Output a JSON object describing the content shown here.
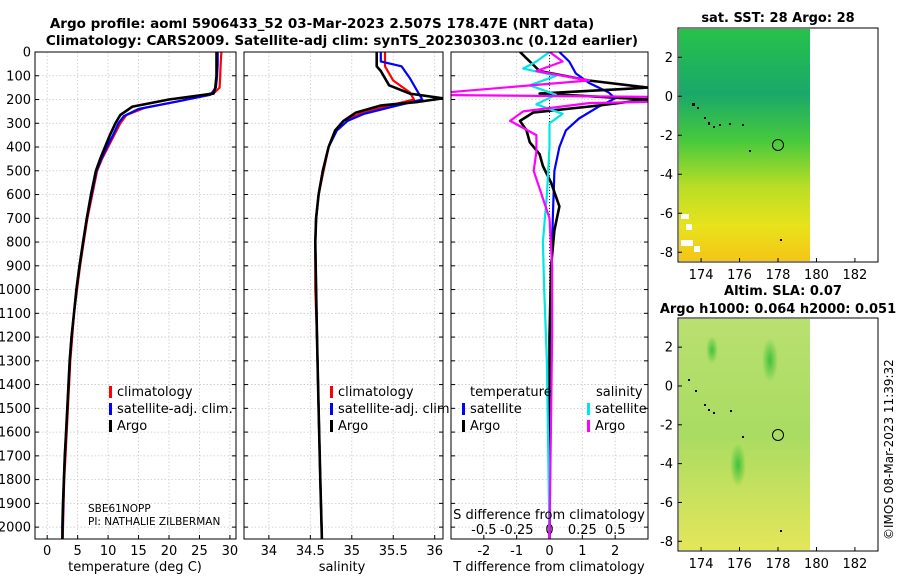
{
  "header": {
    "title_line1": "Argo profile: aoml 5906433_52 03-Mar-2023 2.507S 178.47E (NRT data)",
    "title_line2": "Climatology: CARS2009. Satellite-adj clim: synTS_20230303.nc (0.12d earlier)"
  },
  "colors": {
    "climatology": "#ff0000",
    "satellite_adj": "#0000ff",
    "argo": "#000000",
    "sal_satellite": "#00e5e5",
    "sal_argo": "#ff00ff"
  },
  "watermark": "©IMOS 08-Mar-2023 11:39:32",
  "chart_data": [
    {
      "id": "temperature",
      "type": "line",
      "xlabel": "temperature (deg C)",
      "xlim": [
        -2,
        31
      ],
      "ylim": [
        2050,
        0
      ],
      "xticks": [
        0,
        5,
        10,
        15,
        20,
        25,
        30
      ],
      "xtick_labels": [
        "0",
        "5",
        "10",
        "15",
        "20",
        "25",
        "30"
      ],
      "yticks": [
        0,
        100,
        200,
        300,
        400,
        500,
        600,
        700,
        800,
        900,
        1000,
        1100,
        1200,
        1300,
        1400,
        1500,
        1600,
        1700,
        1800,
        1900,
        2000
      ],
      "ytick_labels": [
        "0",
        "100",
        "200",
        "300",
        "400",
        "500",
        "600",
        "700",
        "800",
        "900",
        "1000",
        "1100",
        "1200",
        "1300",
        "1400",
        "1500",
        "1600",
        "1700",
        "1800",
        "1900",
        "2000"
      ],
      "grid": true,
      "legend": [
        "climatology",
        "satellite-adj. clim.",
        "Argo"
      ],
      "annotation": [
        "SBE61NOPP",
        "PI: NATHALIE ZILBERMAN"
      ],
      "series": [
        {
          "name": "climatology",
          "color": "#ff0000",
          "points": [
            [
              28.6,
              0
            ],
            [
              28.5,
              40
            ],
            [
              28.4,
              100
            ],
            [
              28.3,
              150
            ],
            [
              27.5,
              170
            ],
            [
              22,
              205
            ],
            [
              16,
              235
            ],
            [
              13,
              265
            ],
            [
              12,
              300
            ],
            [
              11,
              350
            ],
            [
              10,
              400
            ],
            [
              9,
              450
            ],
            [
              8.2,
              500
            ],
            [
              7.4,
              600
            ],
            [
              6.6,
              700
            ],
            [
              6,
              800
            ],
            [
              5.4,
              900
            ],
            [
              4.9,
              1000
            ],
            [
              4.4,
              1100
            ],
            [
              4.1,
              1200
            ],
            [
              3.8,
              1300
            ],
            [
              3.6,
              1400
            ],
            [
              3.4,
              1500
            ],
            [
              3.2,
              1600
            ],
            [
              3.0,
              1700
            ],
            [
              2.8,
              1800
            ],
            [
              2.7,
              1900
            ],
            [
              2.6,
              2000
            ],
            [
              2.55,
              2050
            ]
          ]
        },
        {
          "name": "satellite-adj. clim.",
          "color": "#0000ff",
          "points": [
            [
              28.0,
              0
            ],
            [
              28.0,
              50
            ],
            [
              27.9,
              100
            ],
            [
              27.7,
              150
            ],
            [
              26.8,
              180
            ],
            [
              21,
              210
            ],
            [
              15,
              240
            ],
            [
              12.6,
              270
            ],
            [
              11.7,
              300
            ],
            [
              10.8,
              350
            ],
            [
              9.8,
              400
            ],
            [
              8.9,
              450
            ],
            [
              8.1,
              500
            ],
            [
              7.3,
              600
            ],
            [
              6.5,
              700
            ],
            [
              5.9,
              800
            ],
            [
              5.3,
              900
            ],
            [
              4.8,
              1000
            ],
            [
              4.4,
              1100
            ],
            [
              4.0,
              1200
            ],
            [
              3.7,
              1300
            ],
            [
              3.5,
              1400
            ],
            [
              3.3,
              1500
            ],
            [
              3.1,
              1600
            ],
            [
              2.9,
              1700
            ],
            [
              2.75,
              1800
            ],
            [
              2.65,
              1900
            ],
            [
              2.55,
              2000
            ],
            [
              2.5,
              2050
            ]
          ]
        },
        {
          "name": "Argo",
          "color": "#000000",
          "points": [
            [
              27.8,
              0
            ],
            [
              27.8,
              50
            ],
            [
              27.8,
              100
            ],
            [
              27.6,
              150
            ],
            [
              27.3,
              175
            ],
            [
              20,
              200
            ],
            [
              14,
              230
            ],
            [
              12,
              265
            ],
            [
              11.2,
              300
            ],
            [
              10.3,
              350
            ],
            [
              9.5,
              400
            ],
            [
              8.7,
              450
            ],
            [
              8.0,
              500
            ],
            [
              7.2,
              600
            ],
            [
              6.5,
              700
            ],
            [
              5.9,
              800
            ],
            [
              5.3,
              900
            ],
            [
              4.8,
              1000
            ],
            [
              4.4,
              1100
            ],
            [
              4.0,
              1200
            ],
            [
              3.7,
              1300
            ],
            [
              3.5,
              1400
            ],
            [
              3.3,
              1500
            ],
            [
              3.1,
              1600
            ],
            [
              2.9,
              1700
            ],
            [
              2.75,
              1800
            ],
            [
              2.6,
              1900
            ],
            [
              2.5,
              2000
            ],
            [
              2.5,
              2050
            ]
          ]
        }
      ]
    },
    {
      "id": "salinity",
      "type": "line",
      "xlabel": "salinity",
      "xlim": [
        33.7,
        36.1
      ],
      "ylim": [
        2050,
        0
      ],
      "xticks": [
        34,
        34.5,
        35,
        35.5,
        36
      ],
      "xtick_labels": [
        "34",
        "34.5",
        "35",
        "35.5",
        "36"
      ],
      "grid": true,
      "legend": [
        "climatology",
        "satellite-adj. clim.",
        "Argo"
      ],
      "series": [
        {
          "name": "climatology",
          "color": "#ff0000",
          "points": [
            [
              35.4,
              0
            ],
            [
              35.4,
              60
            ],
            [
              35.5,
              120
            ],
            [
              35.7,
              170
            ],
            [
              35.75,
              200
            ],
            [
              35.4,
              230
            ],
            [
              35.1,
              260
            ],
            [
              34.9,
              290
            ],
            [
              34.8,
              330
            ],
            [
              34.72,
              400
            ],
            [
              34.66,
              500
            ],
            [
              34.6,
              600
            ],
            [
              34.57,
              700
            ],
            [
              34.56,
              800
            ],
            [
              34.56,
              1000
            ],
            [
              34.58,
              1200
            ],
            [
              34.6,
              1500
            ],
            [
              34.62,
              1800
            ],
            [
              34.64,
              2050
            ]
          ]
        },
        {
          "name": "satellite-adj. clim.",
          "color": "#0000ff",
          "points": [
            [
              35.35,
              0
            ],
            [
              35.35,
              40
            ],
            [
              35.6,
              60
            ],
            [
              35.7,
              110
            ],
            [
              35.8,
              170
            ],
            [
              35.85,
              200
            ],
            [
              35.5,
              230
            ],
            [
              35.15,
              260
            ],
            [
              34.95,
              290
            ],
            [
              34.82,
              330
            ],
            [
              34.72,
              400
            ],
            [
              34.65,
              500
            ],
            [
              34.6,
              600
            ],
            [
              34.57,
              700
            ],
            [
              34.56,
              800
            ],
            [
              34.57,
              1000
            ],
            [
              34.58,
              1200
            ],
            [
              34.6,
              1500
            ],
            [
              34.62,
              1800
            ],
            [
              34.64,
              2050
            ]
          ]
        },
        {
          "name": "Argo",
          "color": "#000000",
          "points": [
            [
              35.3,
              0
            ],
            [
              35.3,
              20
            ],
            [
              35.3,
              60
            ],
            [
              35.35,
              80
            ],
            [
              35.45,
              140
            ],
            [
              35.7,
              175
            ],
            [
              36.1,
              195
            ],
            [
              35.8,
              210
            ],
            [
              35.35,
              225
            ],
            [
              35.05,
              255
            ],
            [
              34.9,
              290
            ],
            [
              34.8,
              330
            ],
            [
              34.72,
              400
            ],
            [
              34.65,
              500
            ],
            [
              34.6,
              600
            ],
            [
              34.57,
              700
            ],
            [
              34.56,
              800
            ],
            [
              34.57,
              1000
            ],
            [
              34.58,
              1200
            ],
            [
              34.6,
              1500
            ],
            [
              34.62,
              1800
            ],
            [
              34.64,
              2050
            ]
          ]
        }
      ]
    },
    {
      "id": "difference",
      "type": "line",
      "xlabel": "T difference from climatology",
      "xlabel2": "S difference from climatology",
      "xlim": [
        -3,
        3
      ],
      "ylim": [
        2050,
        0
      ],
      "xticks": [
        -2,
        -1,
        0,
        1,
        2
      ],
      "xtick_labels": [
        "-2",
        "-1",
        "0",
        "1",
        "2"
      ],
      "sticks": [
        -0.5,
        -0.25,
        0,
        0.25,
        0.5
      ],
      "stick_labels": [
        "-0.5",
        "-0.25",
        "0",
        "0.25",
        "0.5"
      ],
      "legend_temperature_title": "temperature",
      "legend_salinity_title": "salinity",
      "legend_temperature": [
        "satellite",
        "Argo"
      ],
      "legend_salinity": [
        "satellite",
        "Argo"
      ],
      "series": [
        {
          "name": "T satellite",
          "color": "#0000ff",
          "points": [
            [
              0.3,
              0
            ],
            [
              0.6,
              40
            ],
            [
              0.8,
              90
            ],
            [
              1.2,
              130
            ],
            [
              1.8,
              170
            ],
            [
              2.0,
              195
            ],
            [
              1.5,
              230
            ],
            [
              0.9,
              280
            ],
            [
              0.5,
              330
            ],
            [
              0.3,
              400
            ],
            [
              0.15,
              500
            ],
            [
              0.1,
              700
            ],
            [
              0.05,
              1000
            ],
            [
              0.02,
              1500
            ],
            [
              0,
              2050
            ]
          ]
        },
        {
          "name": "T Argo",
          "color": "#000000",
          "points": [
            [
              -0.9,
              0
            ],
            [
              -0.6,
              40
            ],
            [
              -0.3,
              80
            ],
            [
              1.2,
              120
            ],
            [
              3.0,
              150
            ],
            [
              -0.3,
              175
            ],
            [
              3.0,
              200
            ],
            [
              1.5,
              225
            ],
            [
              -0.5,
              255
            ],
            [
              -0.9,
              290
            ],
            [
              -0.7,
              330
            ],
            [
              -0.6,
              380
            ],
            [
              -0.3,
              430
            ],
            [
              -0.2,
              480
            ],
            [
              0.05,
              550
            ],
            [
              0.3,
              650
            ],
            [
              0.15,
              750
            ],
            [
              0.05,
              900
            ],
            [
              0,
              1200
            ],
            [
              0,
              2050
            ]
          ]
        },
        {
          "name": "S satellite",
          "color": "#00e5e5",
          "points": [
            [
              0,
              0
            ],
            [
              -0.1,
              40
            ],
            [
              -0.2,
              70
            ],
            [
              0.05,
              100
            ],
            [
              -0.15,
              140
            ],
            [
              0.05,
              180
            ],
            [
              -0.1,
              220
            ],
            [
              0.1,
              260
            ],
            [
              0,
              300
            ],
            [
              0,
              400
            ],
            [
              -0.02,
              600
            ],
            [
              -0.05,
              800
            ],
            [
              -0.04,
              1000
            ],
            [
              -0.02,
              1300
            ],
            [
              0,
              2050
            ]
          ]
        },
        {
          "name": "S Argo",
          "color": "#ff00ff",
          "points": [
            [
              0,
              0
            ],
            [
              0.1,
              40
            ],
            [
              -0.1,
              80
            ],
            [
              0.3,
              120
            ],
            [
              -1.0,
              180
            ],
            [
              2.0,
              195
            ],
            [
              0.3,
              215
            ],
            [
              -0.2,
              250
            ],
            [
              -0.3,
              290
            ],
            [
              -0.1,
              350
            ],
            [
              -0.1,
              420
            ],
            [
              -0.12,
              500
            ],
            [
              -0.06,
              600
            ],
            [
              0,
              700
            ],
            [
              0.02,
              900
            ],
            [
              0.02,
              1200
            ],
            [
              0,
              2050
            ]
          ]
        }
      ]
    }
  ],
  "maps": {
    "sst": {
      "title": "sat. SST: 28 Argo: 28",
      "xticks": [
        "174",
        "176",
        "178",
        "180",
        "182"
      ],
      "yticks": [
        "2",
        "0",
        "-2",
        "-4",
        "-6",
        "-8"
      ]
    },
    "sla": {
      "title1": "Altim. SLA: 0.07",
      "title2": "Argo h1000: 0.064 h2000: 0.051",
      "xticks": [
        "174",
        "176",
        "178",
        "180",
        "182"
      ],
      "yticks": [
        "2",
        "0",
        "-2",
        "-4",
        "-6",
        "-8"
      ]
    }
  }
}
